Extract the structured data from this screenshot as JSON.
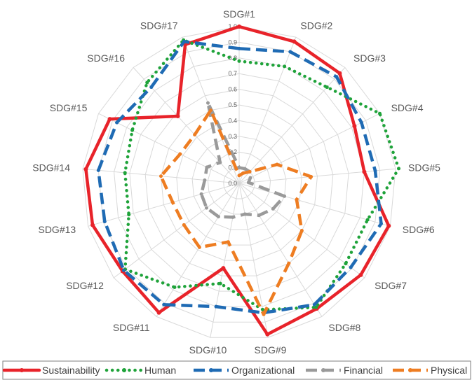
{
  "chart_data": {
    "type": "radar",
    "axes": [
      "SDG#1",
      "SDG#2",
      "SDG#3",
      "SDG#4",
      "SDG#5",
      "SDG#6",
      "SDG#7",
      "SDG#8",
      "SDG#9",
      "SDG#10",
      "SDG#11",
      "SDG#12",
      "SDG#13",
      "SDG#14",
      "SDG#15",
      "SDG#16",
      "SDG#17"
    ],
    "tick_labels": [
      "0.0",
      "0.1",
      "0.2",
      "0.3",
      "0.4",
      "0.5",
      "0.6",
      "0.7",
      "0.8",
      "0.9",
      "1.0"
    ],
    "rlim": [
      0,
      1
    ],
    "grid": true,
    "legend_position": "bottom",
    "series": [
      {
        "name": "Sustainability",
        "color": "#e8232a",
        "style": "solid",
        "values": [
          1.0,
          0.97,
          0.95,
          0.82,
          0.8,
          0.99,
          0.97,
          0.94,
          0.98,
          0.55,
          0.97,
          0.93,
          0.97,
          0.98,
          0.92,
          0.58,
          0.95
        ]
      },
      {
        "name": "Human",
        "color": "#1fa33a",
        "style": "dotted",
        "values": [
          0.78,
          0.8,
          0.83,
          1.0,
          1.02,
          0.85,
          0.85,
          0.93,
          0.82,
          0.65,
          0.78,
          0.91,
          0.73,
          0.73,
          0.76,
          0.87,
          0.98
        ]
      },
      {
        "name": "Organizational",
        "color": "#1f6bb4",
        "style": "dashed",
        "values": [
          0.86,
          0.9,
          0.92,
          0.87,
          0.87,
          0.94,
          0.89,
          0.91,
          0.84,
          0.8,
          0.91,
          0.92,
          0.89,
          0.9,
          0.87,
          0.83,
          0.97
        ]
      },
      {
        "name": "Financial",
        "color": "#9a9a9a",
        "style": "dashed",
        "values": [
          0.1,
          0.1,
          0.1,
          0.08,
          0.06,
          0.3,
          0.27,
          0.24,
          0.2,
          0.22,
          0.25,
          0.26,
          0.25,
          0.22,
          0.23,
          0.18,
          0.55
        ]
      },
      {
        "name": "Physical",
        "color": "#ee7d22",
        "style": "dashed",
        "values": [
          0.05,
          0.07,
          0.1,
          0.27,
          0.46,
          0.38,
          0.5,
          0.6,
          0.85,
          0.38,
          0.48,
          0.44,
          0.44,
          0.5,
          0.42,
          0.42,
          0.5
        ]
      }
    ]
  }
}
